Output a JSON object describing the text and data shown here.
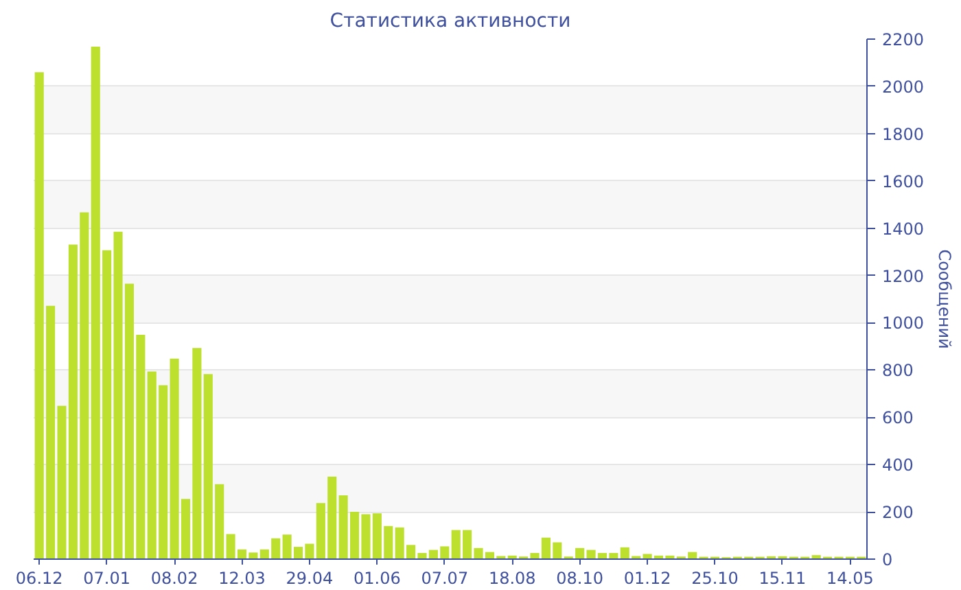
{
  "chart_data": {
    "type": "bar",
    "title": "Статистика активности",
    "ylabel": "Сообщений",
    "categories": [
      "06.12",
      null,
      null,
      null,
      null,
      null,
      "07.01",
      null,
      null,
      null,
      null,
      null,
      "08.02",
      null,
      null,
      null,
      null,
      null,
      "12.03",
      null,
      null,
      null,
      null,
      null,
      "29.04",
      null,
      null,
      null,
      null,
      null,
      "01.06",
      null,
      null,
      null,
      null,
      null,
      "07.07",
      null,
      null,
      null,
      null,
      null,
      "18.08",
      null,
      null,
      null,
      null,
      null,
      "08.10",
      null,
      null,
      null,
      null,
      null,
      "01.12",
      null,
      null,
      null,
      null,
      null,
      "25.10",
      null,
      null,
      null,
      null,
      null,
      "15.11",
      null,
      null,
      null,
      null,
      null,
      "14.05",
      null
    ],
    "values": [
      2060,
      1072,
      649,
      1331,
      1467,
      2168,
      1307,
      1385,
      1165,
      949,
      794,
      736,
      848,
      255,
      893,
      783,
      317,
      106,
      41,
      28,
      41,
      88,
      104,
      52,
      65,
      237,
      349,
      270,
      200,
      190,
      194,
      140,
      134,
      60,
      26,
      39,
      54,
      123,
      123,
      47,
      30,
      13,
      15,
      11,
      26,
      91,
      71,
      11,
      47,
      39,
      26,
      26,
      50,
      13,
      22,
      15,
      15,
      11,
      30,
      10,
      10,
      8,
      10,
      10,
      10,
      12,
      12,
      10,
      10,
      17,
      10,
      10,
      10,
      10
    ],
    "color": "#bde02f",
    "ylim": [
      0,
      2200
    ],
    "yticks": [
      0,
      200,
      400,
      600,
      800,
      1000,
      1200,
      1400,
      1600,
      1800,
      2000,
      2200
    ],
    "grid": "y"
  }
}
